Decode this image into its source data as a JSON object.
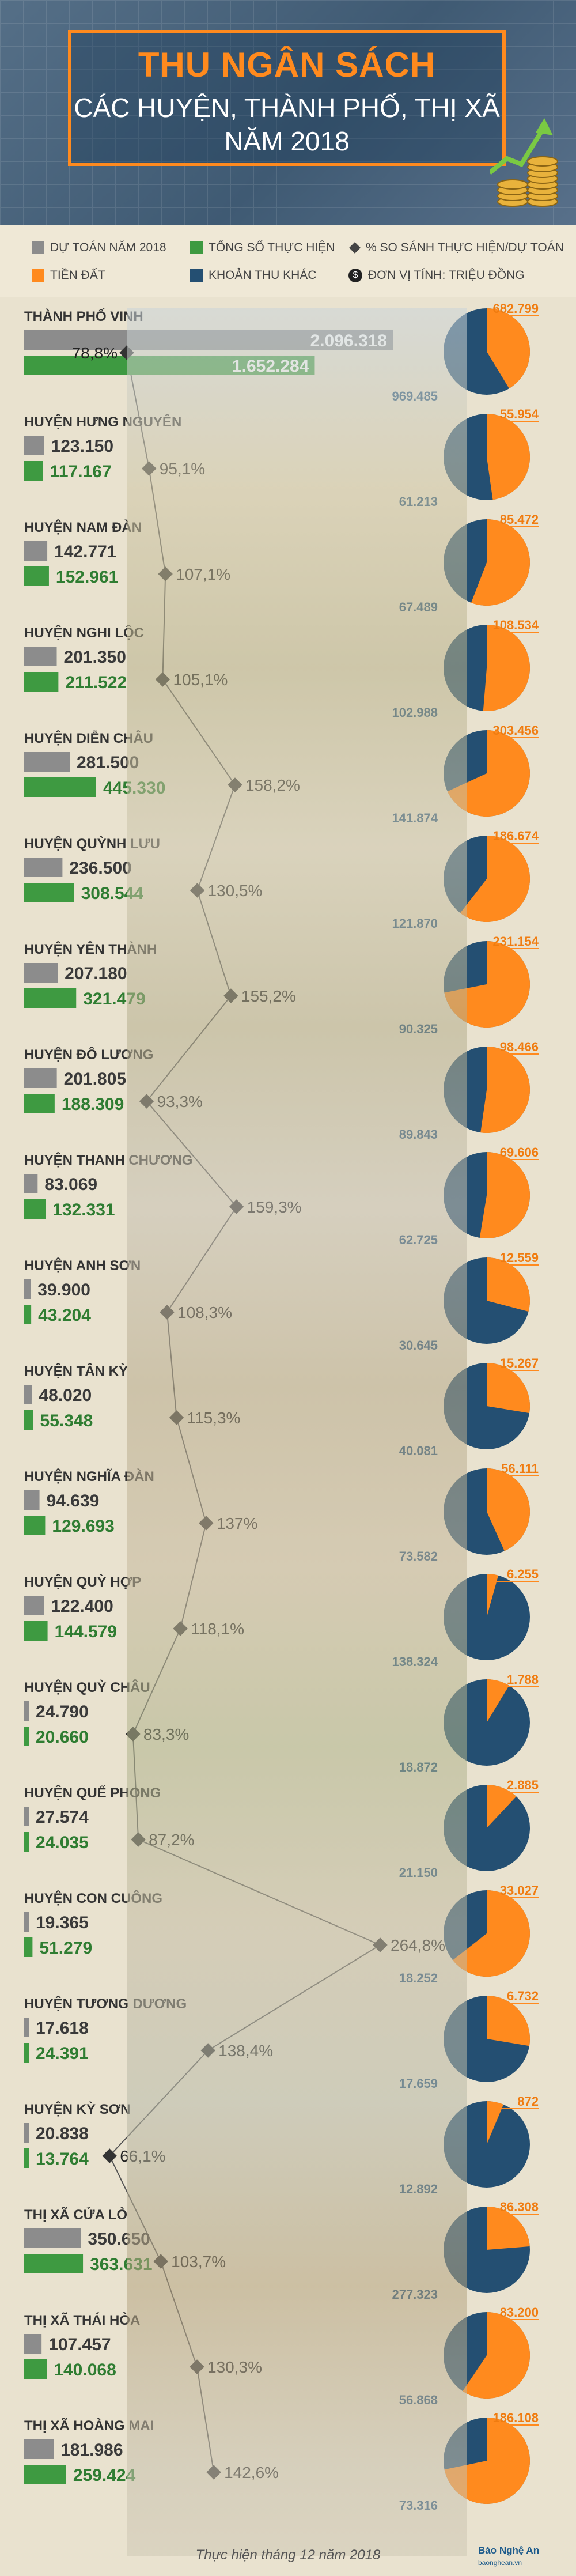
{
  "header": {
    "title_line1": "THU NGÂN SÁCH",
    "title_line2": "CÁC HUYỆN, THÀNH PHỐ, THỊ XÃ",
    "title_line3": "NĂM 2018"
  },
  "legend": {
    "budget_label": "DỰ TOÁN NĂM 2018",
    "actual_label": "TỔNG SỐ THỰC HIỆN",
    "ratio_label": "% SO SÁNH THỰC HIỆN/DỰ TOÁN",
    "land_label": "TIỀN ĐẤT",
    "other_label": "KHOẢN THU KHÁC",
    "unit_label": "ĐƠN VỊ TÍNH: TRIỆU ĐỒNG",
    "unit_icon": "money-icon"
  },
  "colors": {
    "budget": "#8c8c8c",
    "actual": "#3e9a41",
    "land": "#ff8a1e",
    "other": "#244f72",
    "accent": "#ff8a1e"
  },
  "chart_data": {
    "type": "bar",
    "categories": [
      "THÀNH PHỐ VINH",
      "HUYỆN HƯNG NGUYÊN",
      "HUYỆN NAM ĐÀN",
      "HUYỆN NGHI LỘC",
      "HUYỆN DIỄN CHÂU",
      "HUYỆN QUỲNH LƯU",
      "HUYỆN YÊN THÀNH",
      "HUYỆN ĐÔ LƯƠNG",
      "HUYỆN THANH CHƯƠNG",
      "HUYỆN ANH SƠN",
      "HUYỆN TÂN KỲ",
      "HUYỆN NGHĨA ĐÀN",
      "HUYỆN QUỲ HỢP",
      "HUYỆN QUỲ CHÂU",
      "HUYỆN QUẾ PHONG",
      "HUYỆN CON CUÔNG",
      "HUYỆN TƯƠNG DƯƠNG",
      "HUYỆN KỲ SƠN",
      "THỊ XÃ CỬA LÒ",
      "THỊ XÃ THÁI HÒA",
      "THỊ XÃ HOÀNG MAI"
    ],
    "series": [
      {
        "name": "DỰ TOÁN NĂM 2018",
        "values": [
          2096318,
          123150,
          142771,
          201350,
          281500,
          236500,
          207180,
          201805,
          83069,
          39900,
          48020,
          94639,
          122400,
          24790,
          27574,
          19365,
          17618,
          20838,
          350650,
          107457,
          181986
        ],
        "labels": [
          "2.096.318",
          "123.150",
          "142.771",
          "201.350",
          "281.500",
          "236.500",
          "207.180",
          "201.805",
          "83.069",
          "39.900",
          "48.020",
          "94.639",
          "122.400",
          "24.790",
          "27.574",
          "19.365",
          "17.618",
          "20.838",
          "350.650",
          "107.457",
          "181.986"
        ]
      },
      {
        "name": "TỔNG SỐ THỰC HIỆN",
        "values": [
          1652284,
          117167,
          152961,
          211522,
          445330,
          308544,
          321479,
          188309,
          132331,
          43204,
          55348,
          129693,
          144579,
          20660,
          24035,
          51279,
          24391,
          13764,
          363631,
          140068,
          259424
        ],
        "labels": [
          "1.652.284",
          "117.167",
          "152.961",
          "211.522",
          "445.330",
          "308.544",
          "321.479",
          "188.309",
          "132.331",
          "43.204",
          "55.348",
          "129.693",
          "144.579",
          "20.660",
          "24.035",
          "51.279",
          "24.391",
          "13.764",
          "363.631",
          "140.068",
          "259.424"
        ]
      },
      {
        "name": "% SO SÁNH THỰC HIỆN/DỰ TOÁN",
        "values": [
          78.8,
          95.1,
          107.1,
          105.1,
          158.2,
          130.5,
          155.2,
          93.3,
          159.3,
          108.3,
          115.3,
          137,
          118.1,
          83.3,
          87.2,
          264.8,
          138.4,
          66.1,
          103.7,
          130.3,
          142.6
        ],
        "labels": [
          "78,8%",
          "95,1%",
          "107,1%",
          "105,1%",
          "158,2%",
          "130,5%",
          "155,2%",
          "93,3%",
          "159,3%",
          "108,3%",
          "115,3%",
          "137%",
          "118,1%",
          "83,3%",
          "87,2%",
          "264,8%",
          "138,4%",
          "66,1%",
          "103,7%",
          "130,3%",
          "142,6%"
        ]
      },
      {
        "name": "TIỀN ĐẤT",
        "values": [
          682799,
          55954,
          85472,
          108534,
          303456,
          186674,
          231154,
          98466,
          69606,
          12559,
          15267,
          56111,
          6255,
          1788,
          2885,
          33027,
          6732,
          872,
          86308,
          83200,
          186108
        ],
        "labels": [
          "682.799",
          "55.954",
          "85.472",
          "108.534",
          "303.456",
          "186.674",
          "231.154",
          "98.466",
          "69.606",
          "12.559",
          "15.267",
          "56.111",
          "6.255",
          "1.788",
          "2.885",
          "33.027",
          "6.732",
          "872",
          "86.308",
          "83.200",
          "186.108"
        ]
      },
      {
        "name": "KHOẢN THU KHÁC",
        "values": [
          969485,
          61213,
          67489,
          102988,
          141874,
          121870,
          90325,
          89843,
          62725,
          30645,
          40081,
          73582,
          138324,
          18872,
          21150,
          18252,
          17659,
          12892,
          277323,
          56868,
          73316
        ],
        "labels": [
          "969.485",
          "61.213",
          "67.489",
          "102.988",
          "141.874",
          "121.870",
          "90.325",
          "89.843",
          "62.725",
          "30.645",
          "40.081",
          "73.582",
          "138.324",
          "18.872",
          "21.150",
          "18.252",
          "17.659",
          "12.892",
          "277.323",
          "56.868",
          "73.316"
        ]
      }
    ]
  },
  "footer": {
    "note": "Thực hiện tháng 12 năm 2018",
    "logo_name": "Báo Nghệ An",
    "logo_site": "baonghean.vn"
  }
}
